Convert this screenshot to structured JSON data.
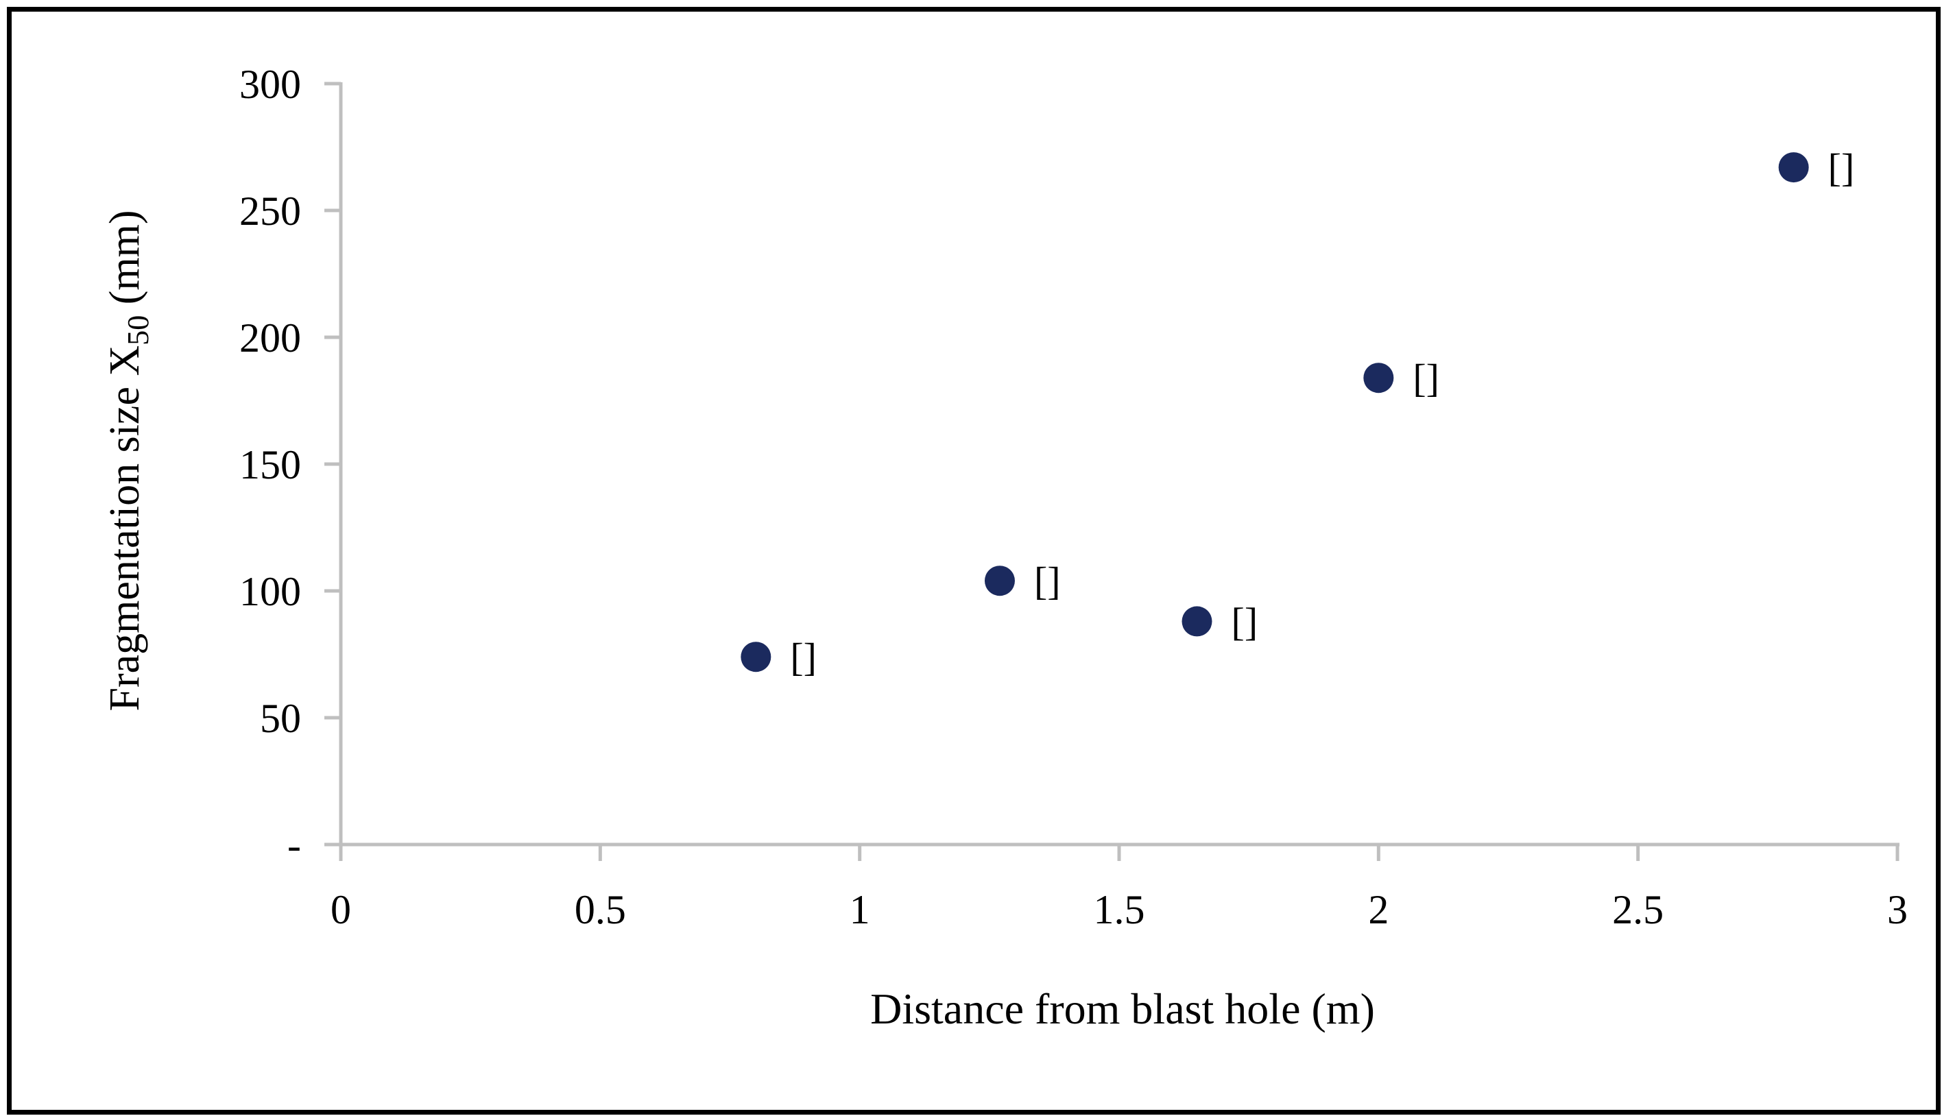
{
  "chart_data": {
    "type": "scatter",
    "title": "",
    "xlabel": "Distance from blast hole (m)",
    "ylabel": "Fragmentation size X50 (mm)",
    "ylabel_parts": {
      "main": "Fragmentation size X",
      "sub": "50",
      "suffix": " (mm)"
    },
    "x": [
      0.8,
      1.27,
      1.65,
      2.0,
      2.8
    ],
    "y": [
      74,
      104,
      88,
      184,
      267
    ],
    "point_labels": [
      "[]",
      "[]",
      "[]",
      "[]",
      "[]"
    ],
    "xlim": [
      0,
      3
    ],
    "ylim": [
      0,
      300
    ],
    "x_ticks": [
      0,
      0.5,
      1,
      1.5,
      2,
      2.5,
      3
    ],
    "x_tick_labels": [
      "0",
      "0.5",
      "1",
      "1.5",
      "2",
      "2.5",
      "3"
    ],
    "y_ticks": [
      0,
      50,
      100,
      150,
      200,
      250,
      300
    ],
    "y_tick_labels": [
      "-",
      "50",
      "100",
      "150",
      "200",
      "250",
      "300"
    ],
    "grid": false,
    "legend": false,
    "point_color": "#1b2a5e",
    "axis_color": "#bfbfbf",
    "label_color": "#000000",
    "frame_color": "#000000"
  }
}
